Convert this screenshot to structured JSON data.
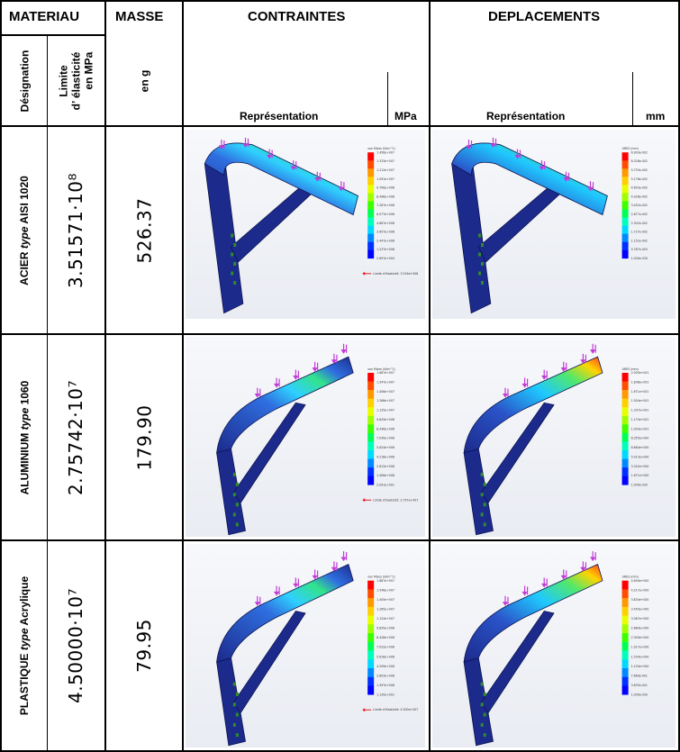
{
  "header": {
    "materiau": "MATERIAU",
    "masse": "MASSE",
    "contraintes": "CONTRAINTES",
    "deplacements": "DEPLACEMENTS",
    "designation": "Désignation",
    "limite_line1": "Limite",
    "limite_line2": "d’  élasticité",
    "limite_line3": "en MPa",
    "masse_unit": "en g",
    "representation_c": "Représentation",
    "unit_c": "MPa",
    "representation_d": "Représentation",
    "unit_d": "mm"
  },
  "rows": [
    {
      "designation_pre": "ACIER ",
      "designation_type": "type",
      "designation_post": " AISI 1020",
      "limite": "3.51571·10⁸",
      "masse": "526.37",
      "stress_title": "von Mises (N/m^2)",
      "stress_ticks": [
        "1.456e+007",
        "1.333e+007",
        "1.212e+007",
        "1.091e+007",
        "9.706e+006",
        "8.496e+006",
        "7.287e+006",
        "6.077e+006",
        "4.867e+006",
        "3.657e+006",
        "2.447e+006",
        "1.237e+006",
        "2.697e+004"
      ],
      "stress_note": "Limite d'élasticité: 3.516e+008",
      "disp_title": "URES (mm)",
      "disp_ticks": [
        "6.903e-002",
        "6.328e-002",
        "5.753e-002",
        "5.178e-002",
        "4.603e-002",
        "4.028e-002",
        "3.452e-002",
        "2.877e-002",
        "2.302e-002",
        "1.727e-002",
        "1.152e-002",
        "5.767e-003",
        "1.000e-030"
      ]
    },
    {
      "designation_pre": "ALUMINIUM ",
      "designation_type": "type",
      "designation_post": " 1060",
      "limite": "2.75742·10⁷",
      "masse": "179.90",
      "stress_title": "von Mises (N/m^2)",
      "stress_ticks": [
        "1.687e+007",
        "1.547e+007",
        "1.406e+007",
        "1.266e+007",
        "1.125e+007",
        "9.843e+006",
        "8.436e+006",
        "7.030e+006",
        "5.624e+006",
        "4.218e+006",
        "2.812e+006",
        "1.406e+006",
        "2.091e+001"
      ],
      "stress_note": "Limite d'élasticité: 2.757e+007",
      "disp_title": "URES (mm)",
      "disp_ticks": [
        "2.005e+001",
        "1.838e+001",
        "1.671e+001",
        "1.504e+001",
        "1.337e+001",
        "1.170e+001",
        "1.003e+001",
        "8.355e+000",
        "6.684e+000",
        "5.013e+000",
        "3.342e+000",
        "1.671e+000",
        "1.000e-030"
      ]
    },
    {
      "designation_pre": "PLASTIQUE ",
      "designation_type": "type",
      "designation_post": " Acrylique",
      "limite": "4.50000·10⁷",
      "masse": "79.95",
      "stress_title": "von Mises (N/m^2)",
      "stress_ticks": [
        "1.687e+007",
        "1.546e+007",
        "1.405e+007",
        "1.265e+007",
        "1.124e+007",
        "9.835e+006",
        "8.428e+006",
        "7.022e+006",
        "5.616e+006",
        "4.209e+006",
        "2.803e+006",
        "1.397e+006",
        "1.120e+001"
      ],
      "stress_note": "Limite d'élasticité: 4.500e+007",
      "disp_title": "URES (mm)",
      "disp_ticks": [
        "4.600e+000",
        "4.217e+000",
        "3.834e+000",
        "3.450e+000",
        "3.067e+000",
        "2.684e+000",
        "2.300e+000",
        "1.917e+000",
        "1.534e+000",
        "1.150e+000",
        "7.669e-001",
        "3.835e-001",
        "1.000e-030"
      ]
    }
  ],
  "colors": {
    "scale": [
      "#ff0000",
      "#ff4d00",
      "#ff9900",
      "#ffd000",
      "#e8ff00",
      "#9fff00",
      "#3cff00",
      "#00ff55",
      "#00ffbb",
      "#00d8ff",
      "#0088ff",
      "#0030ff",
      "#0000ff"
    ],
    "beam_dark": "#1c2a8c",
    "beam_mid": "#2f6fe0",
    "load_arrow": "#c23bd6",
    "fixture": "#2e8b2e"
  }
}
